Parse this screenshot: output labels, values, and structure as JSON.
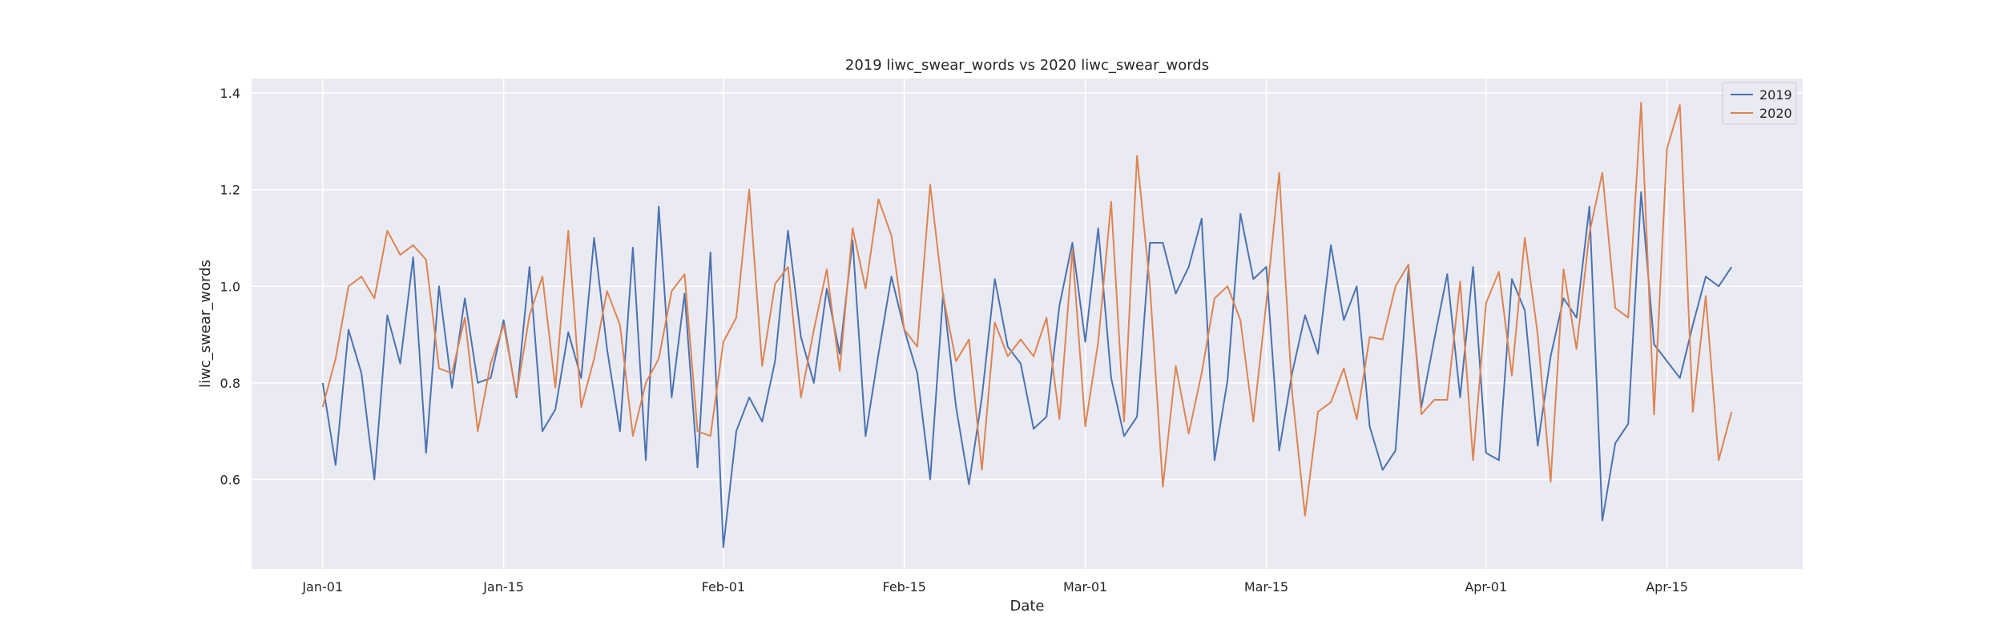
{
  "chart_data": {
    "type": "line",
    "title": "2019 liwc_swear_words vs 2020 liwc_swear_words",
    "xlabel": "Date",
    "ylabel": "liwc_swear_words",
    "x_start": "Jan-01",
    "x_ticks": [
      {
        "label": "Jan-01",
        "day": 0
      },
      {
        "label": "Jan-15",
        "day": 14
      },
      {
        "label": "Feb-01",
        "day": 31
      },
      {
        "label": "Feb-15",
        "day": 45
      },
      {
        "label": "Mar-01",
        "day": 59
      },
      {
        "label": "Mar-15",
        "day": 73
      },
      {
        "label": "Apr-01",
        "day": 90
      },
      {
        "label": "Apr-15",
        "day": 104
      }
    ],
    "y_ticks": [
      0.6,
      0.8,
      1.0,
      1.2,
      1.4
    ],
    "y_tick_labels": [
      "0.6",
      "0.8",
      "1.0",
      "1.2",
      "1.4"
    ],
    "xlim": [
      -5.5,
      114.5
    ],
    "ylim": [
      0.415,
      1.43
    ],
    "grid": true,
    "legend_position": "top-right",
    "series": [
      {
        "name": "2019",
        "color": "#4c72b0",
        "values": [
          0.8,
          0.63,
          0.91,
          0.82,
          0.6,
          0.94,
          0.84,
          1.06,
          0.655,
          1.0,
          0.79,
          0.975,
          0.8,
          0.81,
          0.93,
          0.77,
          1.04,
          0.7,
          0.745,
          0.905,
          0.81,
          1.1,
          0.87,
          0.7,
          1.08,
          0.64,
          1.165,
          0.77,
          0.985,
          0.625,
          1.07,
          0.46,
          0.7,
          0.77,
          0.72,
          0.845,
          1.115,
          0.895,
          0.8,
          0.995,
          0.86,
          1.095,
          0.69,
          0.86,
          1.02,
          0.91,
          0.82,
          0.6,
          0.985,
          0.75,
          0.59,
          0.77,
          1.015,
          0.875,
          0.84,
          0.705,
          0.73,
          0.96,
          1.09,
          0.885,
          1.12,
          0.81,
          0.69,
          0.73,
          1.09,
          1.09,
          0.985,
          1.04,
          1.14,
          0.64,
          0.805,
          1.15,
          1.015,
          1.04,
          0.66,
          0.82,
          0.94,
          0.86,
          1.085,
          0.93,
          1.0,
          0.71,
          0.62,
          0.66,
          1.035,
          0.75,
          0.89,
          1.025,
          0.77,
          1.04,
          0.655,
          0.64,
          1.015,
          0.95,
          0.67,
          0.855,
          0.975,
          0.935,
          1.165,
          0.515,
          0.675,
          0.715,
          1.195,
          0.88,
          0.845,
          0.81,
          0.92,
          1.02,
          1.0,
          1.04
        ]
      },
      {
        "name": "2020",
        "color": "#dd8452",
        "values": [
          0.75,
          0.85,
          1.0,
          1.02,
          0.975,
          1.115,
          1.065,
          1.085,
          1.055,
          0.83,
          0.82,
          0.935,
          0.7,
          0.84,
          0.92,
          0.775,
          0.94,
          1.02,
          0.79,
          1.115,
          0.75,
          0.85,
          0.99,
          0.92,
          0.69,
          0.8,
          0.85,
          0.99,
          1.025,
          0.7,
          0.69,
          0.885,
          0.935,
          1.2,
          0.835,
          1.005,
          1.04,
          0.77,
          0.91,
          1.035,
          0.825,
          1.12,
          0.995,
          1.18,
          1.105,
          0.91,
          0.875,
          1.21,
          0.98,
          0.845,
          0.89,
          0.62,
          0.925,
          0.855,
          0.89,
          0.855,
          0.935,
          0.725,
          1.075,
          0.71,
          0.885,
          1.175,
          0.72,
          1.27,
          1.0,
          0.585,
          0.835,
          0.695,
          0.82,
          0.975,
          1.0,
          0.93,
          0.72,
          0.965,
          1.235,
          0.78,
          0.525,
          0.74,
          0.76,
          0.83,
          0.725,
          0.895,
          0.89,
          1.0,
          1.045,
          0.735,
          0.765,
          0.765,
          1.01,
          0.64,
          0.965,
          1.03,
          0.815,
          1.1,
          0.9,
          0.595,
          1.035,
          0.87,
          1.11,
          1.235,
          0.955,
          0.935,
          1.38,
          0.735,
          1.285,
          1.375,
          0.74,
          0.98,
          0.64,
          0.74
        ]
      }
    ]
  }
}
